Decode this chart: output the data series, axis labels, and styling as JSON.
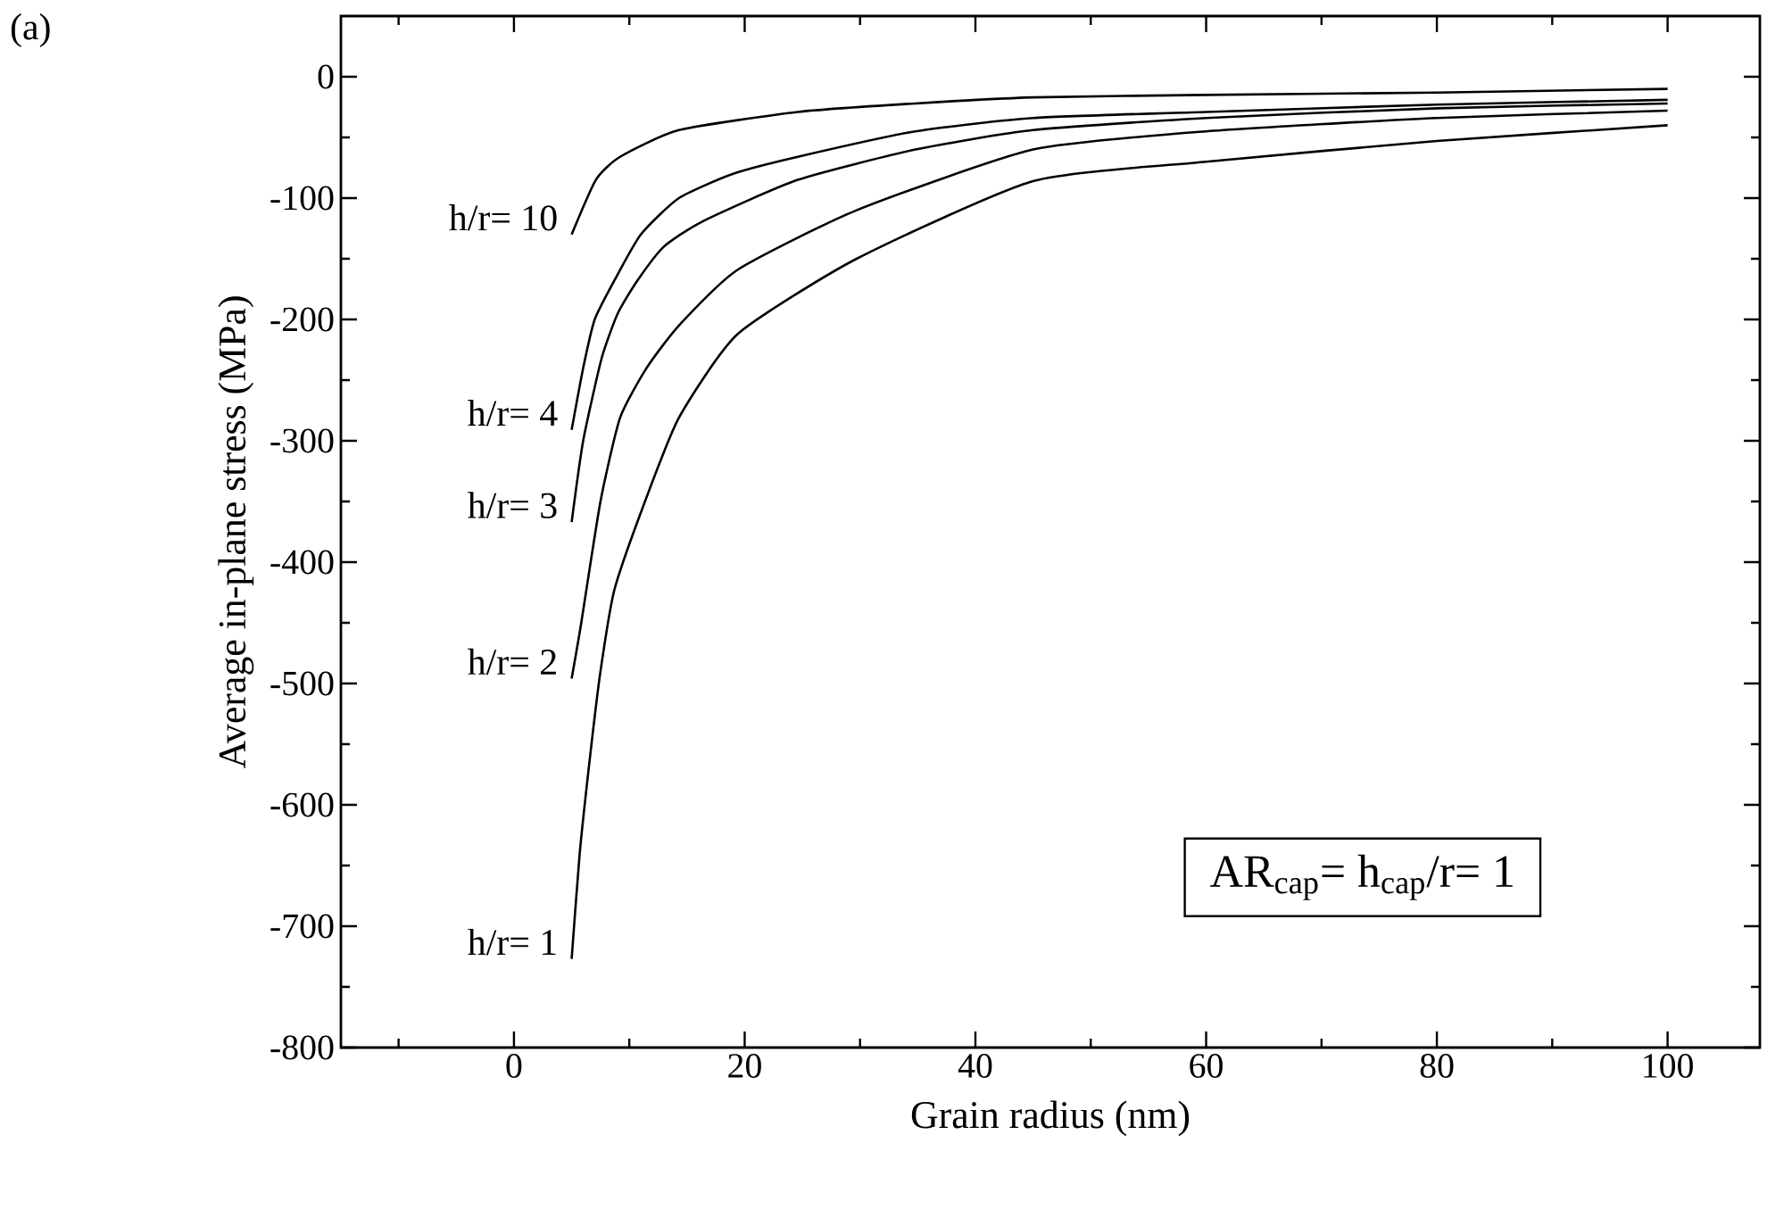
{
  "chart_data": {
    "type": "line",
    "title": "(a)",
    "xlabel": "Grain radius (nm)",
    "ylabel": "Average in-plane stress (MPa)",
    "xlim": [
      -15,
      108
    ],
    "ylim": [
      -800,
      50
    ],
    "xticks": [
      {
        "value": -10,
        "label": null
      },
      0,
      {
        "value": 10,
        "label": null
      },
      20,
      {
        "value": 30,
        "label": null
      },
      40,
      {
        "value": 50,
        "label": null
      },
      60,
      {
        "value": 70,
        "label": null
      },
      80,
      {
        "value": 90,
        "label": null
      },
      100
    ],
    "yticks": [
      -800,
      {
        "value": -750,
        "label": null
      },
      -700,
      {
        "value": -650,
        "label": null
      },
      -600,
      {
        "value": -550,
        "label": null
      },
      -500,
      {
        "value": -450,
        "label": null
      },
      -400,
      {
        "value": -350,
        "label": null
      },
      -300,
      {
        "value": -250,
        "label": null
      },
      -200,
      {
        "value": -150,
        "label": null
      },
      -100,
      {
        "value": -50,
        "label": null
      },
      0
    ],
    "series": [
      {
        "color": "#000000",
        "x": [
          5,
          7.1,
          9.2,
          14.3,
          24.6,
          34.8,
          45,
          60,
          80,
          100
        ],
        "values": [
          -130,
          -85,
          -66,
          -44,
          -29,
          -22,
          -17,
          -15,
          -13,
          -10
        ]
      },
      {
        "color": "#000000",
        "x": [
          5,
          6,
          7,
          8.7,
          11,
          14.3,
          19,
          24.6,
          34.8,
          45,
          60,
          80,
          100
        ],
        "values": [
          -291,
          -240,
          -200,
          -168,
          -130,
          -100,
          -80,
          -66,
          -45,
          -34,
          -29,
          -23,
          -19
        ]
      },
      {
        "color": "#000000",
        "x": [
          5,
          6,
          7.6,
          9,
          10.7,
          13,
          16.4,
          24.6,
          34.8,
          45,
          60,
          80,
          100
        ],
        "values": [
          -367,
          -300,
          -232,
          -195,
          -168,
          -140,
          -119,
          -85,
          -60,
          -44,
          -34,
          -26,
          -22
        ]
      },
      {
        "color": "#000000",
        "x": [
          5,
          5.8,
          7.5,
          9.2,
          11.5,
          14.3,
          19.4,
          29.7,
          45,
          60,
          80,
          100
        ],
        "values": [
          -496,
          -452,
          -350,
          -281,
          -240,
          -205,
          -159,
          -110,
          -60,
          -45,
          -34,
          -28
        ]
      },
      {
        "color": "#000000",
        "x": [
          5,
          5.7,
          6.6,
          7.5,
          8.7,
          11.2,
          14.3,
          19.4,
          29.7,
          45,
          60,
          80,
          100
        ],
        "values": [
          -727,
          -640,
          -560,
          -490,
          -423,
          -354,
          -281,
          -212,
          -150,
          -86,
          -70,
          -53,
          -40
        ]
      }
    ],
    "annotations": [
      "h/r= 10",
      "h/r= 4",
      "h/r= 3",
      "h/r= 2",
      "h/r= 1",
      "AR$_{cap}$= h$_{cap}$/r= 1"
    ]
  }
}
